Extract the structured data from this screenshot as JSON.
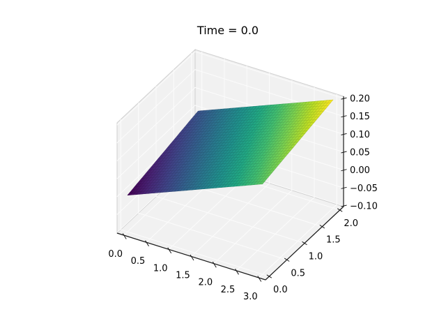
{
  "figure": {
    "background": "#ffffff"
  },
  "chart_data": {
    "type": "surface",
    "title": "Time = 0.0",
    "x": [
      0.0,
      0.5,
      1.0,
      1.5,
      2.0,
      2.5,
      3.0
    ],
    "y": [
      0.0,
      0.5,
      1.0,
      1.5,
      2.0
    ],
    "z": [
      [
        0.0,
        0.025,
        0.05,
        0.075,
        0.1,
        0.125,
        0.15
      ],
      [
        0.0125,
        0.0375,
        0.0625,
        0.0875,
        0.1125,
        0.1375,
        0.1625
      ],
      [
        0.025,
        0.05,
        0.075,
        0.1,
        0.125,
        0.15,
        0.175
      ],
      [
        0.0375,
        0.0625,
        0.0875,
        0.1125,
        0.1375,
        0.1625,
        0.1875
      ],
      [
        0.05,
        0.075,
        0.1,
        0.125,
        0.15,
        0.175,
        0.2
      ]
    ],
    "xlim": [
      -0.15,
      3.15
    ],
    "ylim": [
      -0.105,
      2.105
    ],
    "zlim": [
      -0.102,
      0.206
    ],
    "xtick_labels": [
      "0.0",
      "0.5",
      "1.0",
      "1.5",
      "2.0",
      "2.5",
      "3.0"
    ],
    "ytick_labels": [
      "0.0",
      "0.5",
      "1.0",
      "1.5",
      "2.0"
    ],
    "ztick_labels": [
      "−0.10",
      "−0.05",
      "0.00",
      "0.05",
      "0.10",
      "0.15",
      "0.20"
    ],
    "ztick_values": [
      -0.1,
      -0.05,
      0.0,
      0.05,
      0.1,
      0.15,
      0.2
    ],
    "colormap": "viridis",
    "color_range": [
      0.0,
      0.2
    ],
    "grid": true,
    "legend": "none"
  },
  "colors": {
    "pane": "#f1f1f1",
    "grid_line": "#fbfbfb",
    "pane_edge": "#cfcfcf",
    "axis_line": "#1a1a1a",
    "tick_text": "#000000",
    "background": "#ffffff"
  }
}
